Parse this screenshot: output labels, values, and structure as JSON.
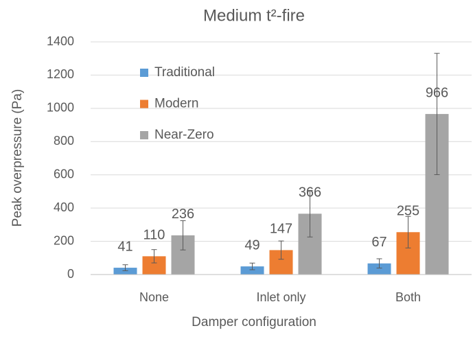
{
  "chart_data": {
    "type": "bar",
    "title": "Medium t²-fire",
    "xlabel": "Damper configuration",
    "ylabel": "Peak overpressure (Pa)",
    "categories": [
      "None",
      "Inlet only",
      "Both"
    ],
    "series": [
      {
        "name": "Traditional",
        "color": "#5b9bd5",
        "values": [
          41,
          49,
          67
        ],
        "errors": [
          18,
          20,
          28
        ]
      },
      {
        "name": "Modern",
        "color": "#ed7d31",
        "values": [
          110,
          147,
          255
        ],
        "errors": [
          40,
          55,
          95
        ]
      },
      {
        "name": "Near-Zero",
        "color": "#a5a5a5",
        "values": [
          236,
          366,
          966
        ],
        "errors": [
          88,
          140,
          365
        ]
      }
    ],
    "ylim": [
      0,
      1400
    ],
    "yticks": [
      0,
      200,
      400,
      600,
      800,
      1000,
      1200,
      1400
    ],
    "grid": true,
    "legend": "top-left"
  }
}
